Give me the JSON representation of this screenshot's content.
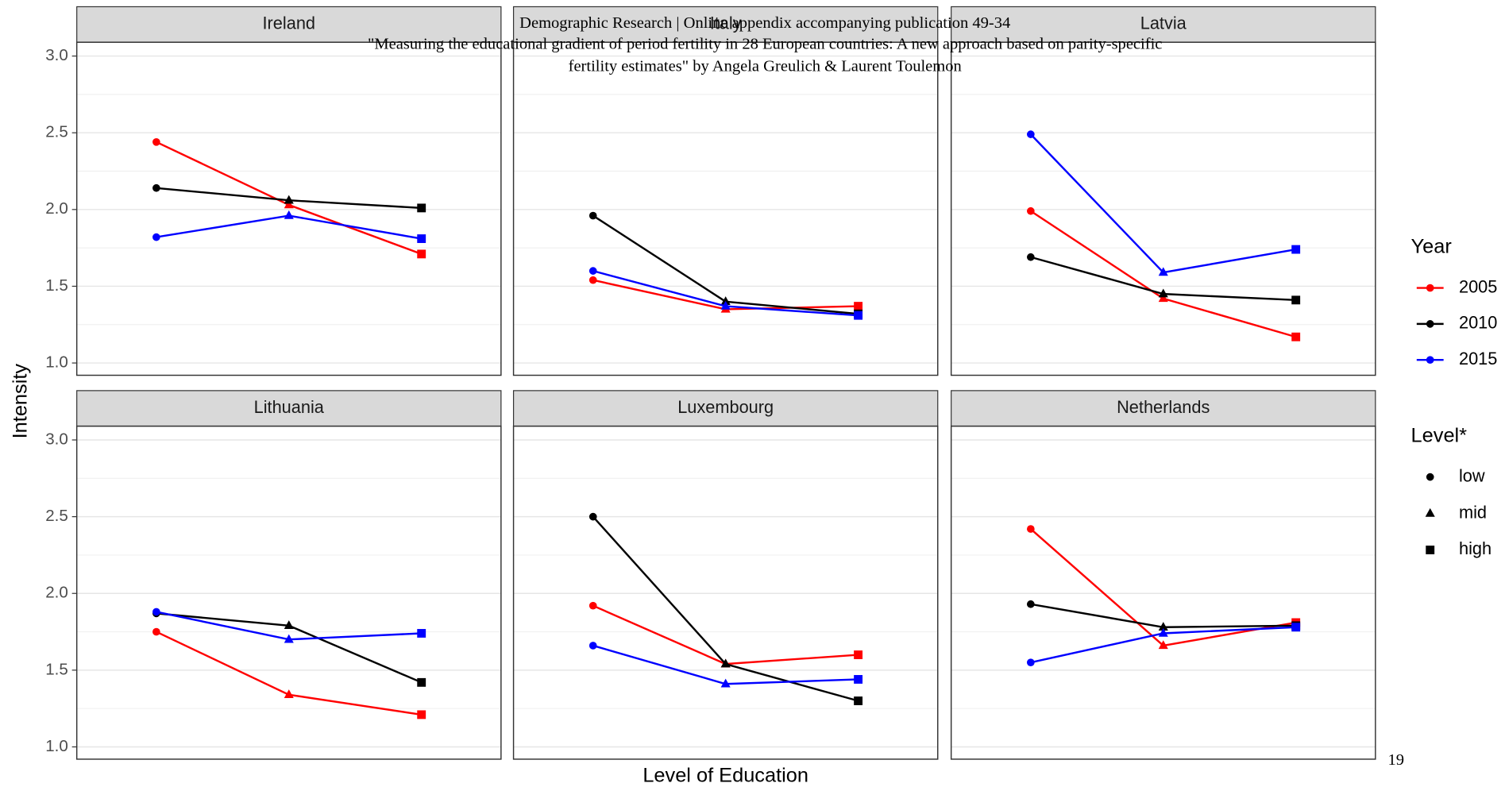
{
  "header": {
    "line1": "Demographic Research | Online appendix accompanying publication 49-34",
    "line2": "\"Measuring the educational gradient of period fertility in 28 European countries: A new approach based on parity-specific",
    "line3": "fertility estimates\" by Angela Greulich & Laurent Toulemon"
  },
  "page_number": "19",
  "y_label": "Intensity",
  "x_label": "Level of Education",
  "legend": {
    "year_title": "Year",
    "level_title": "Level*",
    "levels": [
      {
        "name": "low",
        "shape": "circle"
      },
      {
        "name": "mid",
        "shape": "triangle"
      },
      {
        "name": "high",
        "shape": "square"
      }
    ]
  },
  "chart_data": [
    {
      "type": "line",
      "title": "Ireland",
      "categories": [
        null,
        null,
        null
      ],
      "ylim": [
        0.92,
        3.09
      ],
      "yticks": [
        1.0,
        1.5,
        2.0,
        2.5,
        3.0
      ],
      "minor_yticks": [
        1.25,
        1.75,
        2.25,
        2.75
      ],
      "grid": true,
      "series": [
        {
          "name": "2005",
          "color": "#ff0000",
          "values": [
            2.44,
            2.03,
            1.71
          ]
        },
        {
          "name": "2010",
          "color": "#000000",
          "values": [
            2.14,
            2.06,
            2.01
          ]
        },
        {
          "name": "2015",
          "color": "#0000ff",
          "values": [
            1.82,
            1.96,
            1.81
          ]
        }
      ]
    },
    {
      "type": "line",
      "title": "Italy",
      "categories": [
        null,
        null,
        null
      ],
      "ylim": [
        0.92,
        3.09
      ],
      "yticks": [
        1.0,
        1.5,
        2.0,
        2.5,
        3.0
      ],
      "minor_yticks": [
        1.25,
        1.75,
        2.25,
        2.75
      ],
      "grid": true,
      "series": [
        {
          "name": "2005",
          "color": "#ff0000",
          "values": [
            1.54,
            1.35,
            1.37
          ]
        },
        {
          "name": "2010",
          "color": "#000000",
          "values": [
            1.96,
            1.4,
            1.32
          ]
        },
        {
          "name": "2015",
          "color": "#0000ff",
          "values": [
            1.6,
            1.37,
            1.31
          ]
        }
      ]
    },
    {
      "type": "line",
      "title": "Latvia",
      "categories": [
        null,
        null,
        null
      ],
      "ylim": [
        0.92,
        3.09
      ],
      "yticks": [
        1.0,
        1.5,
        2.0,
        2.5,
        3.0
      ],
      "minor_yticks": [
        1.25,
        1.75,
        2.25,
        2.75
      ],
      "grid": true,
      "series": [
        {
          "name": "2005",
          "color": "#ff0000",
          "values": [
            1.99,
            1.42,
            1.17
          ]
        },
        {
          "name": "2010",
          "color": "#000000",
          "values": [
            1.69,
            1.45,
            1.41
          ]
        },
        {
          "name": "2015",
          "color": "#0000ff",
          "values": [
            2.49,
            1.59,
            1.74
          ]
        }
      ]
    },
    {
      "type": "line",
      "title": "Lithuania",
      "categories": [
        null,
        null,
        null
      ],
      "ylim": [
        0.92,
        3.09
      ],
      "yticks": [
        1.0,
        1.5,
        2.0,
        2.5,
        3.0
      ],
      "minor_yticks": [
        1.25,
        1.75,
        2.25,
        2.75
      ],
      "grid": true,
      "series": [
        {
          "name": "2005",
          "color": "#ff0000",
          "values": [
            1.75,
            1.34,
            1.21
          ]
        },
        {
          "name": "2010",
          "color": "#000000",
          "values": [
            1.87,
            1.79,
            1.42
          ]
        },
        {
          "name": "2015",
          "color": "#0000ff",
          "values": [
            1.88,
            1.7,
            1.74
          ]
        }
      ]
    },
    {
      "type": "line",
      "title": "Luxembourg",
      "categories": [
        null,
        null,
        null
      ],
      "ylim": [
        0.92,
        3.09
      ],
      "yticks": [
        1.0,
        1.5,
        2.0,
        2.5,
        3.0
      ],
      "minor_yticks": [
        1.25,
        1.75,
        2.25,
        2.75
      ],
      "grid": true,
      "series": [
        {
          "name": "2005",
          "color": "#ff0000",
          "values": [
            1.92,
            1.54,
            1.6
          ]
        },
        {
          "name": "2010",
          "color": "#000000",
          "values": [
            2.5,
            1.54,
            1.3
          ]
        },
        {
          "name": "2015",
          "color": "#0000ff",
          "values": [
            1.66,
            1.41,
            1.44
          ]
        }
      ]
    },
    {
      "type": "line",
      "title": "Netherlands",
      "categories": [
        null,
        null,
        null
      ],
      "ylim": [
        0.92,
        3.09
      ],
      "yticks": [
        1.0,
        1.5,
        2.0,
        2.5,
        3.0
      ],
      "minor_yticks": [
        1.25,
        1.75,
        2.25,
        2.75
      ],
      "grid": true,
      "series": [
        {
          "name": "2005",
          "color": "#ff0000",
          "values": [
            2.42,
            1.66,
            1.81
          ]
        },
        {
          "name": "2010",
          "color": "#000000",
          "values": [
            1.93,
            1.78,
            1.79
          ]
        },
        {
          "name": "2015",
          "color": "#0000ff",
          "values": [
            1.55,
            1.74,
            1.78
          ]
        }
      ]
    }
  ]
}
